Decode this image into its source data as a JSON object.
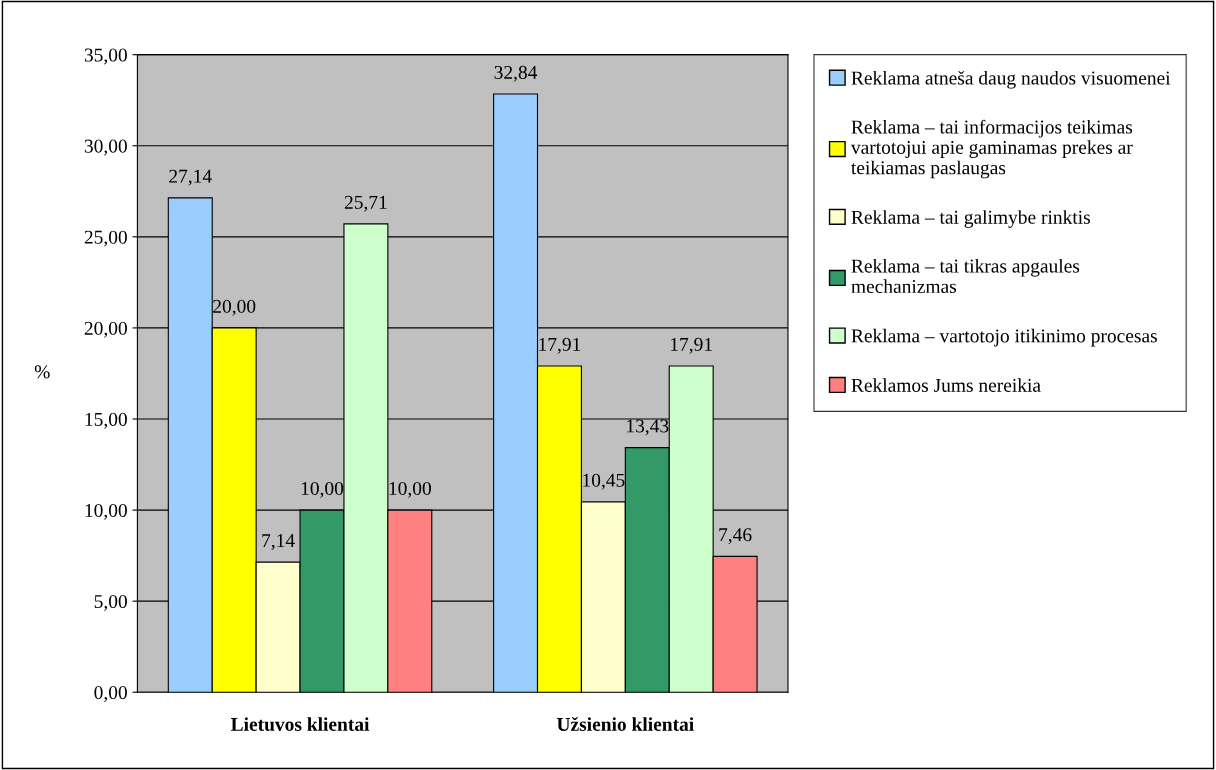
{
  "chart_data": {
    "type": "bar",
    "ylabel": "%",
    "categories": [
      "Lietuvos klientai",
      "Užsienio klientai"
    ],
    "series": [
      {
        "name": "Reklama atneša daug naudos visuomenei",
        "color": "#99ccff",
        "values": [
          27.14,
          32.84
        ],
        "value_labels": [
          "27,14",
          "32,84"
        ]
      },
      {
        "name": "Reklama – tai informacijos teikimas vartotojui apie gaminamas prekes ar teikiamas paslaugas",
        "color": "#ffff00",
        "values": [
          20.0,
          17.91
        ],
        "value_labels": [
          "20,00",
          "17,91"
        ]
      },
      {
        "name": "Reklama – tai galimybe rinktis",
        "color": "#ffffcc",
        "values": [
          7.14,
          10.45
        ],
        "value_labels": [
          "7,14",
          "10,45"
        ]
      },
      {
        "name": "Reklama – tai tikras apgaules mechanizmas",
        "color": "#339966",
        "values": [
          10.0,
          13.43
        ],
        "value_labels": [
          "10,00",
          "13,43"
        ]
      },
      {
        "name": "Reklama – vartotojo itikinimo procesas",
        "color": "#ccffcc",
        "values": [
          25.71,
          17.91
        ],
        "value_labels": [
          "25,71",
          "17,91"
        ]
      },
      {
        "name": "Reklamos Jums nereikia",
        "color": "#ff8080",
        "values": [
          10.0,
          7.46
        ],
        "value_labels": [
          "10,00",
          "7,46"
        ]
      }
    ],
    "ylim": [
      0,
      35
    ],
    "yticks": [
      {
        "value": 0,
        "label": "0,00"
      },
      {
        "value": 5,
        "label": "5,00"
      },
      {
        "value": 10,
        "label": "10,00"
      },
      {
        "value": 15,
        "label": "15,00"
      },
      {
        "value": 20,
        "label": "20,00"
      },
      {
        "value": 25,
        "label": "25,00"
      },
      {
        "value": 30,
        "label": "30,00"
      },
      {
        "value": 35,
        "label": "35,00"
      }
    ],
    "grid": "y",
    "legend": "right"
  }
}
